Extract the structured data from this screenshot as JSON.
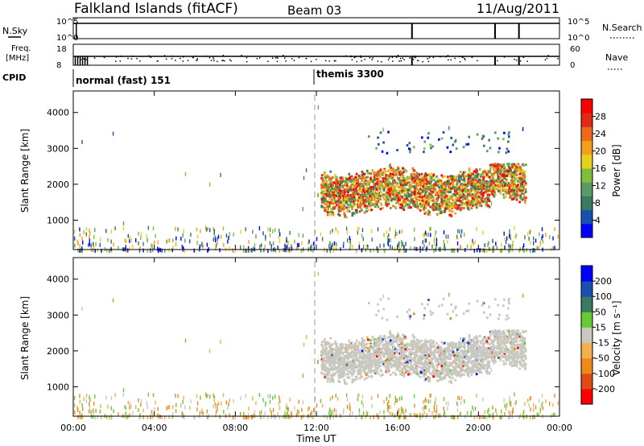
{
  "header": {
    "site": "Falkland Islands (fitACF)",
    "beam": "Beam 03",
    "date": "11/Aug/2011"
  },
  "params": {
    "nsky_label": "N.Sky",
    "nsearch_label": "N.Search",
    "nsky_ticks": [
      "10^5",
      "10^0"
    ],
    "nsearch_ticks": [
      "10^5",
      "10^0"
    ],
    "freq_label_1": "Freq.",
    "freq_label_2": "[MHz]",
    "freq_ticks": [
      "18",
      "8"
    ],
    "nave_label": "Nave",
    "nave_ticks": [
      "60",
      "0"
    ],
    "cpid_label": "CPID",
    "modes": [
      {
        "label": "normal (fast) 151",
        "start": 0
      },
      {
        "label": "themis 3300",
        "start": 12.0
      }
    ],
    "spike_times": [
      16.72,
      20.82,
      22.0
    ]
  },
  "x_axis": {
    "label": "Time UT",
    "ticks": [
      "00:00",
      "04:00",
      "08:00",
      "12:00",
      "16:00",
      "20:00",
      "00:00"
    ]
  },
  "power_panel": {
    "ylabel": "Slant Range [km]",
    "yticks": [
      "1000",
      "2000",
      "3000",
      "4000"
    ],
    "colorbar_label": "Power [dB]",
    "colorbar_ticks": [
      "4",
      "8",
      "12",
      "16",
      "20",
      "24",
      "28"
    ]
  },
  "velocity_panel": {
    "ylabel": "Slant Range [km]",
    "yticks": [
      "1000",
      "2000",
      "3000",
      "4000"
    ],
    "colorbar_label": "Velocity [m s⁻¹]",
    "colorbar_ticks": [
      "200",
      "100",
      "50",
      "15",
      "-15",
      "-50",
      "-100",
      "-200"
    ]
  },
  "colors": {
    "power_scale": [
      "#0000ff",
      "#1a4fb4",
      "#3a7a60",
      "#5a9a66",
      "#7fbe3a",
      "#e6d21e",
      "#f2a01c",
      "#ee6a1a",
      "#e02a14",
      "#ff0000"
    ],
    "velocity_scale": [
      "#0000ff",
      "#1a4fb4",
      "#3a7a60",
      "#66cc33",
      "#c8c8c0",
      "#f2b050",
      "#ee8a1a",
      "#e04a14",
      "#ff0000"
    ]
  },
  "chart_data": [
    {
      "type": "heatmap",
      "title": "Falkland Islands (fitACF)",
      "subtitle": "Beam 03  11/Aug/2011",
      "xlabel": "Time UT",
      "ylabel": "Slant Range [km]",
      "zlabel": "Power [dB]",
      "xlim": [
        0,
        24
      ],
      "ylim": [
        180,
        4600
      ],
      "zlim": [
        0,
        32
      ],
      "ground_scatter": {
        "x_range": [
          0,
          24
        ],
        "y_range": [
          180,
          700
        ],
        "note": "sparse low-range echoes throughout the day"
      },
      "main_echo_region": {
        "x_range": [
          12.2,
          22.3
        ],
        "y_range": [
          800,
          2600
        ],
        "peak_power": 28
      },
      "upper_echoes": {
        "x_range": [
          14.5,
          21.5
        ],
        "y_range": [
          2900,
          3500
        ]
      }
    },
    {
      "type": "heatmap",
      "xlabel": "Time UT",
      "ylabel": "Slant Range [km]",
      "zlabel": "Velocity [m s⁻¹]",
      "xlim": [
        0,
        24
      ],
      "ylim": [
        180,
        4600
      ],
      "zlim": [
        -250,
        250
      ],
      "dominant_value": "-15 to 15 (ground scatter, grey)",
      "main_echo_region": {
        "x_range": [
          12.2,
          22.3
        ],
        "y_range": [
          800,
          2600
        ]
      }
    }
  ]
}
